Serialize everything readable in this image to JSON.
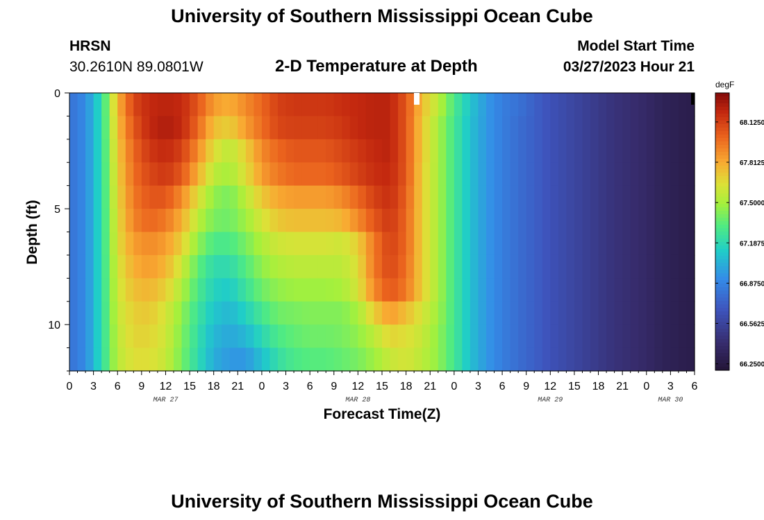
{
  "header": {
    "title": "University of Southern Mississippi Ocean Cube",
    "station": "HRSN",
    "coords": "30.2610N  89.0801W",
    "subtitle": "2-D Temperature at Depth",
    "model_label": "Model Start Time",
    "model_time": "03/27/2023 Hour 21"
  },
  "footer": {
    "title": "University of Southern Mississippi Ocean Cube"
  },
  "chart_data": {
    "type": "heatmap",
    "title": "2-D Temperature at Depth",
    "xlabel": "Forecast Time(Z)",
    "ylabel": "Depth (ft)",
    "x_tick_labels": [
      "0",
      "3",
      "6",
      "9",
      "12",
      "15",
      "18",
      "21",
      "0",
      "3",
      "6",
      "9",
      "12",
      "15",
      "18",
      "21",
      "0",
      "3",
      "6",
      "9",
      "12",
      "15",
      "18",
      "21",
      "0",
      "3",
      "6"
    ],
    "x_date_labels": [
      {
        "label": "MAR 27",
        "at_hour": 12
      },
      {
        "label": "MAR 28",
        "at_hour": 36
      },
      {
        "label": "MAR 29",
        "at_hour": 60
      },
      {
        "label": "MAR 30",
        "at_hour": 75
      }
    ],
    "x_range_hours": [
      0,
      78
    ],
    "y_tick_labels": [
      "0",
      "5",
      "10"
    ],
    "y_range_ft": [
      0,
      12
    ],
    "colorbar": {
      "unit": "degF",
      "min": 66.2,
      "max": 68.35,
      "tick_labels": [
        "68.1250",
        "67.8125",
        "67.5000",
        "67.1875",
        "66.8750",
        "66.5625",
        "66.2500"
      ]
    },
    "depths_ft": [
      0.5,
      1.5,
      2.5,
      3.5,
      4.5,
      5.5,
      6.5,
      7.5,
      8.5,
      9.5,
      10.5,
      11.5
    ],
    "key_hours": [
      0,
      2,
      4,
      6,
      8,
      10,
      12,
      14,
      16,
      18,
      20,
      22,
      24,
      26,
      28,
      30,
      32,
      34,
      36,
      38,
      40,
      42,
      44,
      46,
      48,
      50,
      52,
      54,
      56,
      58,
      60,
      62,
      64,
      66,
      68,
      70,
      72,
      74,
      76,
      78
    ],
    "values": [
      [
        66.8,
        66.9,
        67.2,
        67.78,
        68.1,
        68.2,
        68.22,
        68.2,
        68.05,
        67.85,
        67.8,
        67.9,
        68.0,
        68.12,
        68.15,
        68.15,
        68.15,
        68.18,
        68.2,
        68.22,
        68.22,
        68.05,
        67.75,
        67.55,
        67.3,
        67.1,
        66.95,
        66.85,
        66.8,
        66.72,
        66.65,
        66.6,
        66.55,
        66.5,
        66.45,
        66.42,
        66.38,
        66.33,
        66.3,
        66.28
      ],
      [
        66.8,
        66.9,
        67.2,
        67.75,
        68.05,
        68.2,
        68.25,
        68.2,
        68.0,
        67.75,
        67.7,
        67.85,
        67.98,
        68.1,
        68.12,
        68.12,
        68.12,
        68.15,
        68.2,
        68.22,
        68.22,
        68.05,
        67.72,
        67.5,
        67.28,
        67.08,
        66.95,
        66.85,
        66.78,
        66.72,
        66.65,
        66.6,
        66.55,
        66.5,
        66.45,
        66.42,
        66.38,
        66.33,
        66.3,
        66.28
      ],
      [
        66.8,
        66.9,
        67.2,
        67.72,
        68.0,
        68.15,
        68.2,
        68.12,
        67.9,
        67.65,
        67.55,
        67.7,
        67.9,
        68.0,
        68.05,
        68.05,
        68.05,
        68.1,
        68.15,
        68.2,
        68.22,
        68.05,
        67.72,
        67.5,
        67.28,
        67.08,
        66.95,
        66.85,
        66.78,
        66.72,
        66.65,
        66.6,
        66.55,
        66.5,
        66.45,
        66.42,
        66.38,
        66.33,
        66.3,
        66.28
      ],
      [
        66.8,
        66.9,
        67.2,
        67.7,
        67.98,
        68.1,
        68.15,
        68.05,
        67.8,
        67.55,
        67.5,
        67.65,
        67.85,
        67.95,
        68.0,
        68.0,
        68.0,
        68.05,
        68.12,
        68.18,
        68.2,
        68.05,
        67.7,
        67.5,
        67.28,
        67.08,
        66.95,
        66.85,
        66.78,
        66.72,
        66.65,
        66.6,
        66.55,
        66.5,
        66.45,
        66.42,
        66.38,
        66.33,
        66.3,
        66.28
      ],
      [
        66.8,
        66.9,
        67.2,
        67.68,
        67.95,
        68.05,
        68.05,
        67.9,
        67.65,
        67.45,
        67.4,
        67.55,
        67.72,
        67.82,
        67.85,
        67.85,
        67.85,
        67.9,
        68.0,
        68.12,
        68.18,
        68.02,
        67.7,
        67.5,
        67.28,
        67.08,
        66.95,
        66.85,
        66.78,
        66.72,
        66.65,
        66.6,
        66.55,
        66.5,
        66.45,
        66.42,
        66.38,
        66.33,
        66.3,
        66.28
      ],
      [
        66.8,
        66.9,
        67.2,
        67.66,
        67.92,
        68.0,
        67.95,
        67.8,
        67.55,
        67.4,
        67.38,
        67.48,
        67.62,
        67.72,
        67.75,
        67.75,
        67.75,
        67.78,
        67.9,
        68.05,
        68.15,
        68.0,
        67.7,
        67.5,
        67.28,
        67.08,
        66.95,
        66.85,
        66.78,
        66.72,
        66.65,
        66.6,
        66.55,
        66.5,
        66.45,
        66.42,
        66.38,
        66.33,
        66.3,
        66.28
      ],
      [
        66.8,
        66.9,
        67.2,
        67.65,
        67.85,
        67.9,
        67.85,
        67.7,
        67.45,
        67.3,
        67.3,
        67.4,
        67.52,
        67.6,
        67.62,
        67.62,
        67.62,
        67.6,
        67.7,
        67.95,
        68.12,
        68.0,
        67.7,
        67.5,
        67.28,
        67.08,
        66.95,
        66.85,
        66.78,
        66.72,
        66.65,
        66.6,
        66.55,
        66.5,
        66.45,
        66.42,
        66.38,
        66.33,
        66.3,
        66.28
      ],
      [
        66.8,
        66.9,
        67.2,
        67.62,
        67.8,
        67.85,
        67.78,
        67.6,
        67.35,
        67.2,
        67.2,
        67.32,
        67.45,
        67.52,
        67.55,
        67.55,
        67.55,
        67.55,
        67.65,
        67.95,
        68.1,
        67.98,
        67.7,
        67.5,
        67.28,
        67.08,
        66.95,
        66.85,
        66.78,
        66.72,
        66.65,
        66.6,
        66.55,
        66.5,
        66.45,
        66.42,
        66.38,
        66.33,
        66.3,
        66.28
      ],
      [
        66.8,
        66.9,
        67.2,
        67.6,
        67.75,
        67.78,
        67.7,
        67.52,
        67.3,
        67.15,
        67.12,
        67.25,
        67.38,
        67.45,
        67.48,
        67.48,
        67.48,
        67.5,
        67.62,
        67.9,
        68.05,
        67.95,
        67.7,
        67.5,
        67.28,
        67.08,
        66.95,
        66.85,
        66.78,
        66.72,
        66.65,
        66.6,
        66.55,
        66.5,
        66.45,
        66.42,
        66.38,
        66.33,
        66.3,
        66.28
      ],
      [
        66.8,
        66.9,
        67.2,
        67.58,
        67.7,
        67.72,
        67.62,
        67.45,
        67.25,
        67.1,
        67.05,
        67.15,
        67.28,
        67.38,
        67.4,
        67.42,
        67.42,
        67.42,
        67.5,
        67.7,
        67.85,
        67.75,
        67.62,
        67.48,
        67.28,
        67.08,
        66.95,
        66.85,
        66.78,
        66.72,
        66.65,
        66.6,
        66.55,
        66.5,
        66.45,
        66.42,
        66.38,
        66.33,
        66.3,
        66.28
      ],
      [
        66.8,
        66.9,
        67.2,
        67.56,
        67.68,
        67.68,
        67.6,
        67.42,
        67.22,
        67.05,
        67.0,
        67.05,
        67.18,
        67.3,
        67.35,
        67.38,
        67.38,
        67.4,
        67.45,
        67.55,
        67.68,
        67.65,
        67.58,
        67.45,
        67.28,
        67.08,
        66.95,
        66.85,
        66.78,
        66.72,
        66.65,
        66.6,
        66.55,
        66.5,
        66.45,
        66.42,
        66.38,
        66.33,
        66.3,
        66.28
      ],
      [
        66.8,
        66.9,
        67.2,
        67.55,
        67.65,
        67.65,
        67.58,
        67.4,
        67.2,
        67.02,
        66.95,
        66.95,
        67.08,
        67.22,
        67.3,
        67.33,
        67.33,
        67.36,
        67.4,
        67.48,
        67.58,
        67.62,
        67.55,
        67.45,
        67.28,
        67.08,
        66.95,
        66.85,
        66.78,
        66.72,
        66.65,
        66.6,
        66.55,
        66.5,
        66.45,
        66.42,
        66.38,
        66.33,
        66.3,
        66.28
      ]
    ]
  }
}
